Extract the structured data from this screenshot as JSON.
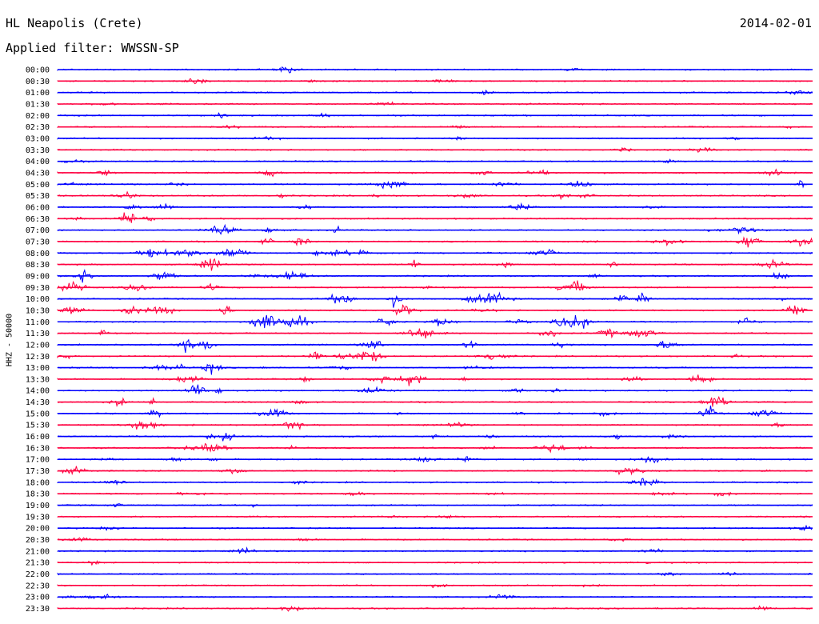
{
  "header": {
    "station": "HL Neapolis (Crete)",
    "date": "2014-02-01",
    "filter_label": "Applied filter: WWSSN-SP"
  },
  "chart_data": {
    "type": "line",
    "title": "HL Neapolis (Crete)",
    "ylabel": "HHZ - 50000",
    "row_labels": [
      "00:00",
      "00:30",
      "01:00",
      "01:30",
      "02:00",
      "02:30",
      "03:00",
      "03:30",
      "04:00",
      "04:30",
      "05:00",
      "05:30",
      "06:00",
      "06:30",
      "07:00",
      "07:30",
      "08:00",
      "08:30",
      "09:00",
      "09:30",
      "10:00",
      "10:30",
      "11:00",
      "11:30",
      "12:00",
      "12:30",
      "13:00",
      "13:30",
      "14:00",
      "14:30",
      "15:00",
      "15:30",
      "16:00",
      "16:30",
      "17:00",
      "17:30",
      "18:00",
      "18:30",
      "19:00",
      "19:30",
      "20:00",
      "20:30",
      "21:00",
      "21:30",
      "22:00",
      "22:30",
      "23:00",
      "23:30"
    ],
    "trace_colors": [
      "#0000ff",
      "#ff0040"
    ],
    "grid": false
  }
}
